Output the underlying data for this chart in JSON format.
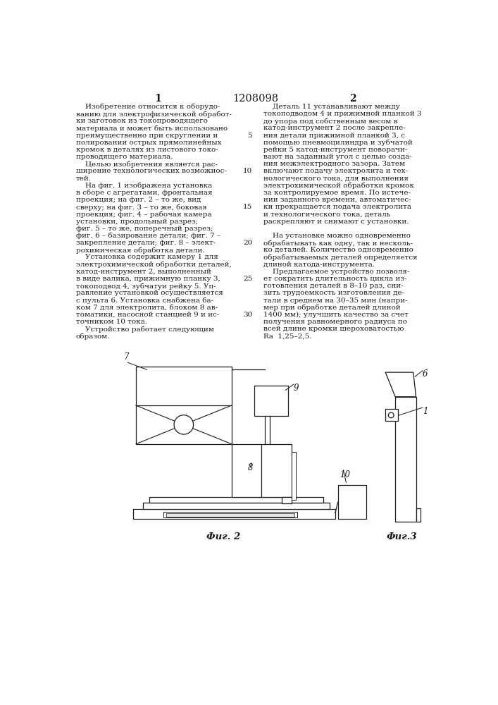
{
  "patent_number": "1208098",
  "col1_header": "1",
  "col2_header": "2",
  "background_color": "#ffffff",
  "text_color": "#1a1a1a",
  "col1_text": [
    "    Изобретение относится к оборудо-",
    "ванию для электрофизической обработ-",
    "ки заготовок из токопроводящего",
    "материала и может быть использовано",
    "преимущественно при скруглении и",
    "полировании острых прямолинейных",
    "кромок в деталях из листового токо-",
    "проводящего материала.",
    "    Целью изобретения является рас-",
    "ширение технологических возможнос-",
    "тей.",
    "    На фиг. 1 изображена установка",
    "в сборе с агрегатами, фронтальная",
    "проекция; на фиг. 2 – то же, вид",
    "сверху; на фиг. 3 – то же, боковая",
    "проекция; фиг. 4 – рабочая камера",
    "установки, продольный разрез;",
    "фиг. 5 – то же, поперечный разрез;",
    "фиг. 6 – базирование детали; фиг. 7 –",
    "закрепление детали; фиг. 8 – элект-",
    "рохимическая обработка детали.",
    "    Установка содержит камеру 1 для",
    "электрохимической обработки деталей,",
    "катод-инструмент 2, выполненный",
    "в виде валика, прижимную планку 3,",
    "токоподвод 4, зубчатуи рейку 5. Уп-",
    "равление установкой осуществляется",
    "с пульта 6. Установка снабжена ба-",
    "ком 7 для электролита, блоком 8 ав-",
    "томатики, насосной станцией 9 и ис-",
    "точником 10 тока.",
    "    Устройство работает следующим",
    "образом."
  ],
  "col2_text_lines": [
    "    Деталь 11 устанавливают между",
    "токоподводом 4 и прижимной планкой 3",
    "до упора под собственным весом в",
    "катод-инструмент 2 после закрепле-",
    "ния детали прижимной планкой 3, с",
    "помощью пневмоцилиндра и зубчатой",
    "рейки 5 катод-инструмент поворачи-",
    "вают на заданный угол с целью созда-",
    "ния межэлектродного зазора. Затем",
    "включают подачу электролита и тех-",
    "нологического тока, для выполнения",
    "электрохимической обработки кромок",
    "за контролируемое время. По истече-",
    "нии заданного времени, автоматичес-",
    "ки прекращается подача электролита",
    "и технологического тока, деталь",
    "раскрепляют и снимают с установки.",
    "",
    "    На установке можно одновременно",
    "обрабатывать как одну, так и несколь-",
    "ко деталей. Количество одновременно",
    "обрабатываемых деталей определяется",
    "длиной катода-инструмента.",
    "    Предлагаемое устройство позволя-",
    "ет сократить длительность цикла из-",
    "готовления деталей в 8–10 раз, сни-",
    "зить трудоемкость изготовления де-",
    "тали в среднем на 30–35 мин (напри-",
    "мер при обработке деталей длиной",
    "1400 мм); улучшить качество за счет",
    "получения равномерного радиуса по",
    "всей длине кромки шероховатостью",
    "Rа  1,25–2,5."
  ],
  "col2_line_numbers": [
    null,
    null,
    null,
    null,
    "5",
    null,
    null,
    null,
    null,
    "10",
    null,
    null,
    null,
    null,
    "15",
    null,
    null,
    null,
    null,
    "20",
    null,
    null,
    null,
    null,
    "25",
    null,
    null,
    null,
    null,
    "30",
    null,
    null,
    null
  ],
  "fig2_label": "Фиг. 2",
  "fig3_label": "Фиг.3"
}
